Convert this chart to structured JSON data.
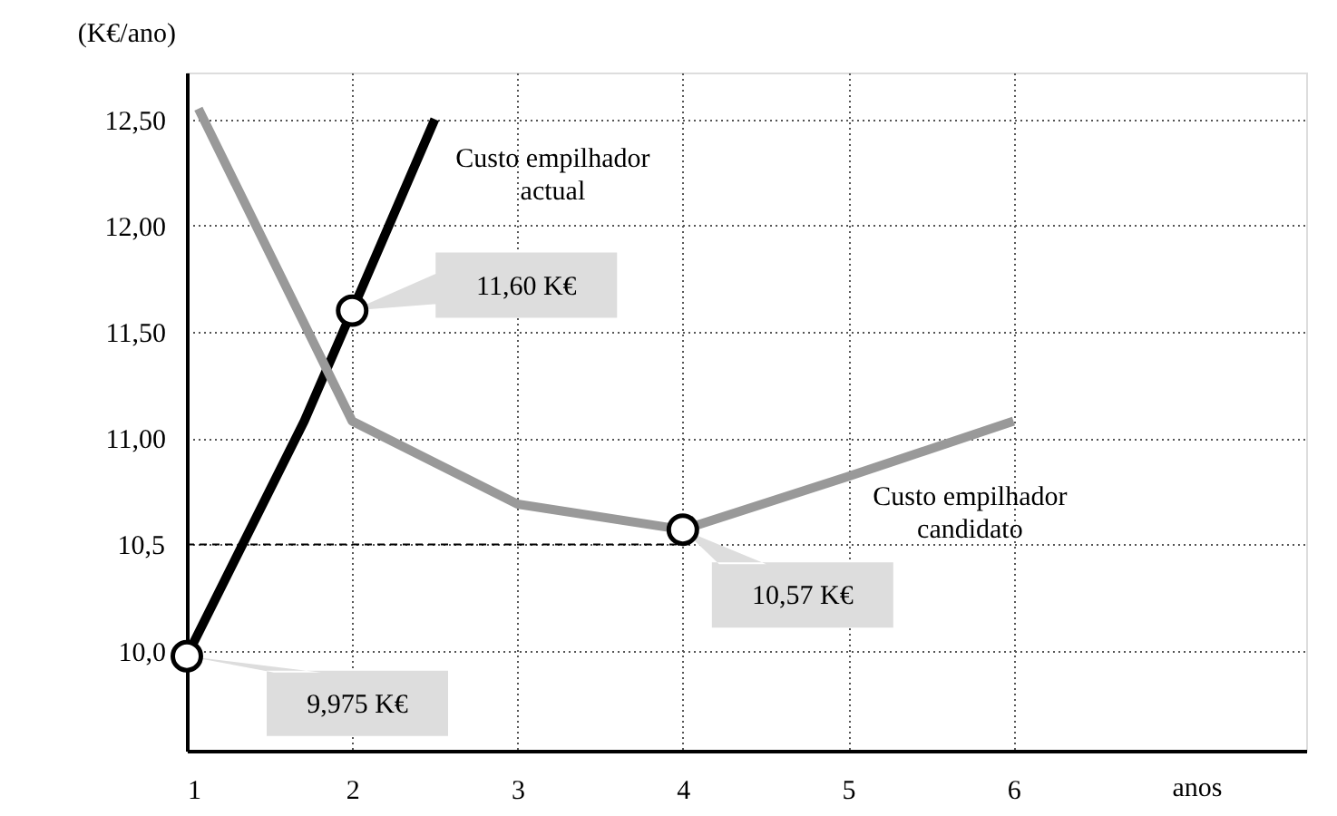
{
  "chart_data": {
    "type": "line",
    "xlabel": "anos",
    "ylabel": "(K€/ano)",
    "xlim": [
      1,
      7.77
    ],
    "ylim": [
      9.53,
      12.72
    ],
    "xticks": [
      1,
      2,
      3,
      4,
      5,
      6
    ],
    "yticks": [
      {
        "value": 10.0,
        "label": "10,0"
      },
      {
        "value": 10.5,
        "label": null
      },
      {
        "value": 11.0,
        "label": "11,00"
      },
      {
        "value": 11.5,
        "label": "11,50"
      },
      {
        "value": 12.0,
        "label": "12,00"
      },
      {
        "value": 12.5,
        "label": "12,50"
      }
    ],
    "grid": true,
    "series": [
      {
        "name": "Custo empilhador actual",
        "color": "#000000",
        "x": [
          1,
          1.71,
          2,
          2.5
        ],
        "values": [
          9.975,
          11.08,
          11.6,
          12.5
        ]
      },
      {
        "name": "Custo empilhador candidato",
        "color": "#999999",
        "x": [
          1.07,
          2,
          3,
          4,
          5,
          6
        ],
        "values": [
          12.55,
          11.08,
          10.69,
          10.57,
          10.82,
          11.08
        ]
      },
      {
        "type": "scatter",
        "color": "#000000",
        "marker": "circle",
        "x": [
          1,
          2,
          4
        ],
        "values": [
          9.975,
          11.6,
          10.57
        ]
      }
    ],
    "ref_lines": [
      {
        "axis": "y",
        "value": 10.5,
        "label": "10,5",
        "line_style": "dashed",
        "color": "#000000"
      }
    ],
    "annotations": [
      {
        "text": "9,975 K€",
        "x": 1,
        "y": 9.975
      },
      {
        "text": "11,60 K€",
        "x": 2,
        "y": 11.6
      },
      {
        "text": "10,57 K€",
        "x": 4,
        "y": 10.57
      }
    ]
  }
}
